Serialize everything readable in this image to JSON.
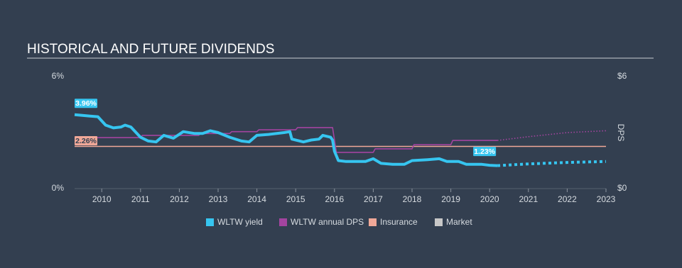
{
  "chart_data": {
    "type": "line",
    "title": "HISTORICAL AND FUTURE DIVIDENDS",
    "y2label": "DPS",
    "xlim": [
      2009.3,
      2023
    ],
    "xticks": [
      2010,
      2011,
      2012,
      2013,
      2014,
      2015,
      2016,
      2017,
      2018,
      2019,
      2020,
      2021,
      2022,
      2023
    ],
    "ylim": [
      0,
      6
    ],
    "yticks": [
      {
        "value": 0,
        "label": "0%"
      },
      {
        "value": 6,
        "label": "6%"
      }
    ],
    "y2lim": [
      0,
      6
    ],
    "y2ticks": [
      {
        "value": 0,
        "label": "$0"
      },
      {
        "value": 6,
        "label": "$6"
      }
    ],
    "series": [
      {
        "name": "WLTW yield",
        "color": "#36c5f0",
        "x": [
          2009.3,
          2009.6,
          2009.9,
          2010.1,
          2010.3,
          2010.5,
          2010.6,
          2010.75,
          2011.0,
          2011.2,
          2011.4,
          2011.6,
          2011.85,
          2012.1,
          2012.4,
          2012.6,
          2012.8,
          2013.0,
          2013.3,
          2013.6,
          2013.8,
          2014.0,
          2014.3,
          2014.7,
          2014.85,
          2014.9,
          2015.2,
          2015.4,
          2015.6,
          2015.7,
          2015.9,
          2015.95,
          2016.0,
          2016.1,
          2016.3,
          2016.8,
          2017.0,
          2017.2,
          2017.5,
          2017.8,
          2018.0,
          2018.4,
          2018.7,
          2018.9,
          2019.2,
          2019.4,
          2019.8,
          2020.0,
          2020.2
        ],
        "values": [
          3.96,
          3.9,
          3.85,
          3.4,
          3.25,
          3.3,
          3.4,
          3.3,
          2.75,
          2.55,
          2.5,
          2.85,
          2.7,
          3.05,
          2.95,
          2.95,
          3.1,
          3.0,
          2.75,
          2.55,
          2.5,
          2.85,
          2.9,
          3.0,
          3.05,
          2.65,
          2.5,
          2.6,
          2.65,
          2.85,
          2.75,
          2.6,
          2.0,
          1.5,
          1.45,
          1.45,
          1.6,
          1.35,
          1.3,
          1.3,
          1.5,
          1.55,
          1.6,
          1.45,
          1.45,
          1.3,
          1.3,
          1.25,
          1.23
        ],
        "forecast": {
          "x": [
            2020.2,
            2021,
            2022,
            2023
          ],
          "values": [
            1.23,
            1.32,
            1.4,
            1.45
          ]
        }
      },
      {
        "name": "WLTW annual DPS",
        "color": "#a3449f",
        "axis": "y2",
        "x": [
          2009.3,
          2011.0,
          2011.05,
          2012.5,
          2012.55,
          2013.3,
          2013.35,
          2014.0,
          2014.05,
          2015.0,
          2015.05,
          2015.95,
          2016.05,
          2017.0,
          2017.05,
          2018.0,
          2018.05,
          2019.0,
          2019.05,
          2020.2
        ],
        "values": [
          2.73,
          2.73,
          2.85,
          2.85,
          2.95,
          2.95,
          3.05,
          3.05,
          3.15,
          3.15,
          3.27,
          3.27,
          1.94,
          1.94,
          2.13,
          2.13,
          2.35,
          2.35,
          2.58,
          2.58
        ],
        "forecast": {
          "x": [
            2020.2,
            2021,
            2022,
            2023
          ],
          "values": [
            2.58,
            2.78,
            3.0,
            3.1
          ]
        }
      },
      {
        "name": "Insurance",
        "color": "#f0a898",
        "x": [
          2009.3,
          2023
        ],
        "values": [
          2.26,
          2.26
        ]
      },
      {
        "name": "Market",
        "color": "#c8c8c8",
        "x": [],
        "values": []
      }
    ],
    "annotations": [
      {
        "text": "3.96%",
        "x": 2009.3,
        "value": 3.96
      },
      {
        "text": "2.26%",
        "x": 2009.3,
        "value": 2.26
      },
      {
        "text": "1.23%",
        "x": 2020.2,
        "value": 1.23
      }
    ]
  }
}
